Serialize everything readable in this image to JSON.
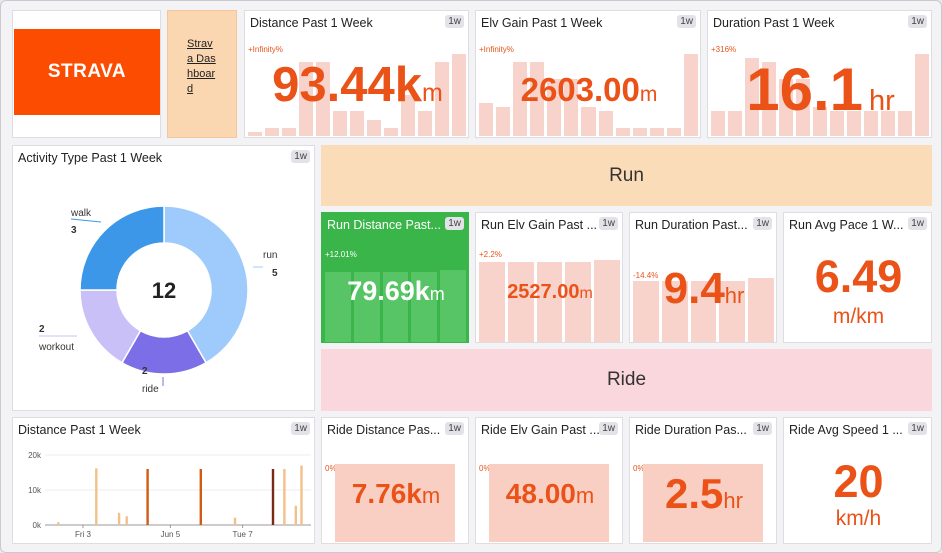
{
  "logo": {
    "text": "STRAVA"
  },
  "dashlink": {
    "label": "Strava Dashboard"
  },
  "range_tag": "1w",
  "top_kpis": [
    {
      "title": "Distance Past 1 Week",
      "change": "+Infinity%",
      "value": "93.44k",
      "unit": "m",
      "bars": [
        0.05,
        0.1,
        0.1,
        0.9,
        0.9,
        0.3,
        0.3,
        0.2,
        0.1,
        0.5,
        0.3,
        0.9,
        1
      ]
    },
    {
      "title": "Elv Gain Past 1 Week",
      "change": "+Infinity%",
      "value": "2603.00",
      "unit": "m",
      "bars": [
        0.4,
        0.35,
        0.9,
        0.9,
        0.7,
        0.7,
        0.35,
        0.3,
        0.1,
        0.1,
        0.1,
        0.1,
        1
      ]
    },
    {
      "title": "Duration Past 1 Week",
      "change": "+316%",
      "value": "16.1",
      "unit": "hr",
      "bars": [
        0.3,
        0.3,
        0.95,
        0.9,
        0.7,
        0.7,
        0.35,
        0.3,
        0.3,
        0.3,
        0.3,
        0.3,
        1
      ]
    }
  ],
  "activity": {
    "title": "Activity Type Past 1 Week",
    "total": "12",
    "slices": [
      {
        "label": "run",
        "count": 5,
        "color": "#9ecbfb"
      },
      {
        "label": "ride",
        "count": 2,
        "color": "#7b6ee6"
      },
      {
        "label": "workout",
        "count": 2,
        "color": "#c9c0f7"
      },
      {
        "label": "walk",
        "count": 3,
        "color": "#3d97e8"
      }
    ]
  },
  "sections": {
    "run": "Run",
    "ride": "Ride"
  },
  "run_kpis": [
    {
      "title": "Run Distance Past...",
      "change": "+12.01%",
      "value": "79.69k",
      "unit": "m"
    },
    {
      "title": "Run Elv Gain Past ...",
      "change": "+2.2%",
      "value": "2527.00",
      "unit": "m"
    },
    {
      "title": "Run Duration Past...",
      "change": "-14.4%",
      "value": "9.4",
      "unit": "hr"
    },
    {
      "title": "Run Avg Pace 1 W...",
      "value": "6.49",
      "unit": "m/km"
    }
  ],
  "ride_kpis": [
    {
      "title": "Ride Distance Pas...",
      "change": "0%",
      "value": "7.76k",
      "unit": "m"
    },
    {
      "title": "Ride Elv Gain Past ...",
      "change": "0%",
      "value": "48.00",
      "unit": "m"
    },
    {
      "title": "Ride Duration Pas...",
      "change": "0%",
      "value": "2.5",
      "unit": "hr"
    },
    {
      "title": "Ride Avg Speed 1 ...",
      "value": "20",
      "unit": "km/h"
    }
  ],
  "chart_data": {
    "type": "bar",
    "title": "Distance Past 1 Week",
    "ylim": [
      0,
      20000
    ],
    "y_ticks": [
      "20k",
      "10k",
      "0k"
    ],
    "x_ticks": [
      "Fri 3",
      "Jun 5",
      "Tue 7"
    ],
    "series": [
      {
        "name": "run",
        "color": "#f2c08a",
        "points": [
          [
            0.35,
            800
          ],
          [
            1.35,
            16200
          ],
          [
            1.95,
            3500
          ],
          [
            2.15,
            2500
          ],
          [
            5.0,
            2100
          ],
          [
            6.3,
            16000
          ],
          [
            6.6,
            5500
          ],
          [
            6.75,
            17000
          ]
        ]
      },
      {
        "name": "ride",
        "color": "#d25a14",
        "points": [
          [
            2.7,
            16000
          ],
          [
            4.1,
            16000
          ]
        ]
      },
      {
        "name": "workout",
        "color": "#7a2a14",
        "points": [
          [
            6.0,
            16000
          ]
        ]
      }
    ],
    "x_range": [
      0,
      7
    ]
  }
}
